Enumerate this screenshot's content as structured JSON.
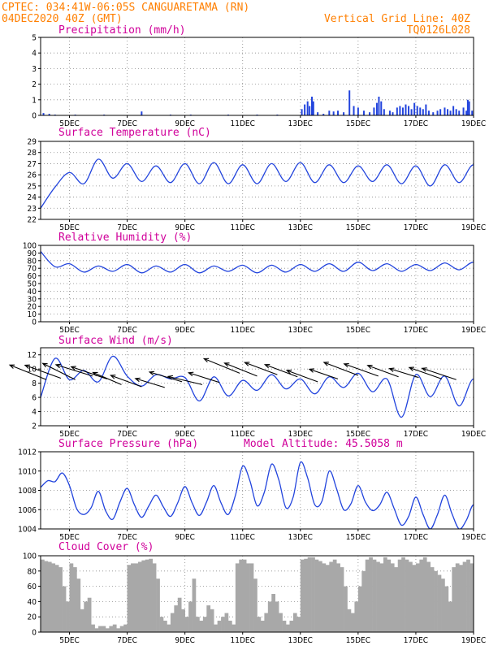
{
  "header": {
    "line1_left": "CPTEC:  034:41W-06:05S  CANGUARETAMA (RN)",
    "line2_left": "04DEC2020 40Z (GMT)",
    "line2_right": "Vertical Grid Line: 40Z",
    "line3_right": "TQ0126L028"
  },
  "colors": {
    "header": "#ff7f00",
    "title": "#d0009a",
    "series": "#2244dd",
    "cloud": "#a8a8a8"
  },
  "x_axis": {
    "unit": "days since 04DEC2020 00Z",
    "range": [
      0,
      15
    ],
    "ticks": [
      {
        "x": 1,
        "label": "5DEC"
      },
      {
        "x": 3,
        "label": "7DEC"
      },
      {
        "x": 5,
        "label": "9DEC"
      },
      {
        "x": 7,
        "label": "11DEC"
      },
      {
        "x": 9,
        "label": "13DEC"
      },
      {
        "x": 11,
        "label": "15DEC"
      },
      {
        "x": 13,
        "label": "17DEC"
      },
      {
        "x": 15,
        "label": "19DEC"
      }
    ],
    "vertical_grid": [
      1,
      3,
      5,
      7,
      9,
      11,
      13
    ]
  },
  "chart_data": [
    {
      "type": "bar",
      "title": "Precipitation (mm/h)",
      "ylim": [
        0,
        5
      ],
      "yticks": [
        0,
        1,
        2,
        3,
        4,
        5
      ],
      "bars": [
        [
          0.1,
          0.15
        ],
        [
          0.3,
          0.1
        ],
        [
          0.5,
          0.05
        ],
        [
          1.2,
          0.05
        ],
        [
          2.2,
          0.05
        ],
        [
          3.5,
          0.25
        ],
        [
          4.5,
          0.05
        ],
        [
          5.2,
          0.05
        ],
        [
          6.5,
          0.05
        ],
        [
          7.5,
          0.05
        ],
        [
          8.2,
          0.05
        ],
        [
          9.05,
          0.4
        ],
        [
          9.15,
          0.7
        ],
        [
          9.25,
          0.9
        ],
        [
          9.32,
          0.6
        ],
        [
          9.4,
          1.2
        ],
        [
          9.45,
          0.9
        ],
        [
          9.6,
          0.2
        ],
        [
          9.8,
          0.1
        ],
        [
          10.0,
          0.3
        ],
        [
          10.15,
          0.25
        ],
        [
          10.3,
          0.3
        ],
        [
          10.5,
          0.2
        ],
        [
          10.7,
          1.6
        ],
        [
          10.85,
          0.6
        ],
        [
          11.0,
          0.5
        ],
        [
          11.2,
          0.3
        ],
        [
          11.4,
          0.2
        ],
        [
          11.55,
          0.5
        ],
        [
          11.65,
          0.8
        ],
        [
          11.72,
          1.2
        ],
        [
          11.8,
          0.9
        ],
        [
          11.9,
          0.4
        ],
        [
          12.1,
          0.3
        ],
        [
          12.2,
          0.2
        ],
        [
          12.35,
          0.5
        ],
        [
          12.45,
          0.6
        ],
        [
          12.55,
          0.5
        ],
        [
          12.65,
          0.7
        ],
        [
          12.75,
          0.6
        ],
        [
          12.85,
          0.4
        ],
        [
          12.95,
          0.8
        ],
        [
          13.05,
          0.6
        ],
        [
          13.15,
          0.5
        ],
        [
          13.25,
          0.4
        ],
        [
          13.35,
          0.7
        ],
        [
          13.45,
          0.3
        ],
        [
          13.6,
          0.2
        ],
        [
          13.75,
          0.3
        ],
        [
          13.85,
          0.4
        ],
        [
          14.0,
          0.5
        ],
        [
          14.1,
          0.4
        ],
        [
          14.2,
          0.3
        ],
        [
          14.3,
          0.6
        ],
        [
          14.4,
          0.4
        ],
        [
          14.5,
          0.3
        ],
        [
          14.65,
          0.5
        ],
        [
          14.75,
          0.3
        ],
        [
          14.8,
          1.0
        ],
        [
          14.85,
          0.9
        ],
        [
          14.95,
          0.3
        ]
      ]
    },
    {
      "type": "line",
      "title": "Surface Temperature (nC)",
      "ylim": [
        22,
        29
      ],
      "yticks": [
        22,
        23,
        24,
        25,
        26,
        27,
        28,
        29
      ],
      "series_start": 0,
      "series_step": 0.5,
      "values": [
        23,
        24.9,
        26.2,
        25.2,
        27.4,
        25.7,
        27,
        25.4,
        26.8,
        25.3,
        27,
        25.2,
        27.1,
        25.2,
        26.9,
        25.2,
        27,
        25.4,
        27.1,
        25.3,
        26.9,
        25.3,
        26.8,
        25.4,
        26.9,
        25.2,
        26.8,
        25.0,
        26.9,
        25.3,
        26.9,
        25.2,
        27.1,
        25.2,
        26.7
      ]
    },
    {
      "type": "line",
      "title": "Relative Humidity (%)",
      "ylim": [
        0,
        100
      ],
      "yticks": [
        0,
        10,
        20,
        30,
        40,
        50,
        60,
        70,
        80,
        90,
        100
      ],
      "series_start": 0,
      "series_step": 0.5,
      "values": [
        92,
        72,
        76,
        65,
        73,
        66,
        75,
        64,
        73,
        65,
        75,
        64,
        73,
        66,
        74,
        64,
        74,
        65,
        75,
        66,
        76,
        66,
        78,
        67,
        76,
        66,
        75,
        67,
        77,
        68,
        78,
        67,
        78,
        69,
        75
      ]
    },
    {
      "type": "line",
      "title": "Surface Wind (m/s)",
      "ylim": [
        2,
        13
      ],
      "yticks": [
        2,
        4,
        6,
        8,
        10,
        12
      ],
      "series_start": 0,
      "series_step": 0.5,
      "values": [
        6,
        11.5,
        8.5,
        9.8,
        8.2,
        11.8,
        9,
        7.6,
        9.2,
        8.6,
        8.8,
        5.5,
        8.9,
        6.2,
        8.4,
        7.0,
        9.2,
        7.2,
        8.6,
        6.5,
        8.9,
        7.4,
        9.4,
        6.8,
        8.6,
        3.2,
        9.2,
        6.1,
        9.0,
        4.8,
        8.6,
        5.1,
        8.8,
        6.6,
        8.3
      ],
      "arrows": [
        {
          "x": 0.2,
          "y": 8.5,
          "dx": 45,
          "dy": 18
        },
        {
          "x": 0.7,
          "y": 8.7,
          "dx": 44,
          "dy": 16
        },
        {
          "x": 1.2,
          "y": 8.5,
          "dx": 40,
          "dy": 20
        },
        {
          "x": 1.8,
          "y": 9.0,
          "dx": 45,
          "dy": 14
        },
        {
          "x": 2.3,
          "y": 8.6,
          "dx": 44,
          "dy": 15
        },
        {
          "x": 2.8,
          "y": 7.8,
          "dx": 35,
          "dy": 15
        },
        {
          "x": 3.5,
          "y": 7.5,
          "dx": 38,
          "dy": 14
        },
        {
          "x": 4.3,
          "y": 7.4,
          "dx": 36,
          "dy": 11
        },
        {
          "x": 4.9,
          "y": 8.2,
          "dx": 40,
          "dy": 12
        },
        {
          "x": 5.6,
          "y": 7.8,
          "dx": 42,
          "dy": 10
        },
        {
          "x": 6.2,
          "y": 8.1,
          "dx": 38,
          "dy": 12
        },
        {
          "x": 6.9,
          "y": 9.4,
          "dx": 44,
          "dy": 18
        },
        {
          "x": 7.5,
          "y": 9.0,
          "dx": 40,
          "dy": 16
        },
        {
          "x": 8.2,
          "y": 9.2,
          "dx": 40,
          "dy": 15
        },
        {
          "x": 8.9,
          "y": 8.9,
          "dx": 40,
          "dy": 15
        },
        {
          "x": 9.6,
          "y": 8.2,
          "dx": 38,
          "dy": 14
        },
        {
          "x": 10.3,
          "y": 8.6,
          "dx": 35,
          "dy": 12
        },
        {
          "x": 11.0,
          "y": 9.1,
          "dx": 42,
          "dy": 16
        },
        {
          "x": 11.7,
          "y": 9.0,
          "dx": 42,
          "dy": 15
        },
        {
          "x": 12.4,
          "y": 8.9,
          "dx": 38,
          "dy": 14
        },
        {
          "x": 13.1,
          "y": 8.8,
          "dx": 36,
          "dy": 11
        },
        {
          "x": 13.9,
          "y": 8.6,
          "dx": 40,
          "dy": 14
        },
        {
          "x": 14.4,
          "y": 8.5,
          "dx": 42,
          "dy": 14
        }
      ]
    },
    {
      "type": "line",
      "title": "Surface Pressure (hPa)",
      "annotation": "Model Altitude: 45.5058 m",
      "ylim": [
        1004,
        1012
      ],
      "yticks": [
        1004,
        1006,
        1008,
        1010,
        1012
      ],
      "series_start": 0,
      "series_step": 0.25,
      "values": [
        1008.3,
        1009.0,
        1008.9,
        1009.8,
        1008.5,
        1006.1,
        1005.5,
        1006.2,
        1007.9,
        1005.9,
        1005.0,
        1006.8,
        1008.2,
        1006.5,
        1005.2,
        1006.4,
        1007.5,
        1006.3,
        1005.3,
        1006.7,
        1008.4,
        1006.7,
        1005.4,
        1006.8,
        1008.5,
        1006.7,
        1005.5,
        1007.5,
        1010.5,
        1009.0,
        1006.4,
        1007.8,
        1010.7,
        1009.1,
        1006.2,
        1007.3,
        1010.9,
        1009.3,
        1006.5,
        1006.9,
        1010.0,
        1008.2,
        1006.0,
        1006.6,
        1008.5,
        1006.8,
        1005.9,
        1006.5,
        1007.8,
        1006.1,
        1004.4,
        1005.3,
        1007.3,
        1005.5,
        1004.0,
        1005.5,
        1007.5,
        1005.6,
        1004.0,
        1004.9,
        1006.5,
        1005.1,
        1004.0,
        1005.0,
        1006.5,
        1005.3,
        1004.3,
        1005.0,
        1006.4,
        1005.0,
        1004.3,
        1005.4,
        1007.0,
        1005.5,
        1004.5,
        1005.0,
        1006.8,
        1005.6,
        1004.2,
        1005.1,
        1006.8,
        1005.5,
        1004.4,
        1005.0,
        1006.7,
        1005.0,
        1004.2,
        1005.1,
        1006.4,
        1005.3,
        1004.3,
        1005.1,
        1006.3,
        1005.0,
        1004.1,
        1005.0,
        1006.2,
        1005.2,
        1004.2,
        1005.0,
        1006.5,
        1005.3,
        1004.4,
        1005.1,
        1006.6,
        1005.3,
        1004.3,
        1005.4,
        1006.4,
        1005.6,
        1004.4,
        1005.2,
        1006.3,
        1005.0,
        1004.7,
        1005.1,
        1006.6,
        1005.3,
        1004.5,
        1005.1,
        1006.6
      ]
    },
    {
      "type": "bar",
      "title": "Cloud Cover (%)",
      "ylim": [
        0,
        100
      ],
      "yticks": [
        0,
        20,
        40,
        60,
        80,
        100
      ],
      "series_start": 0,
      "series_step": 0.125,
      "values": [
        95,
        93,
        92,
        90,
        88,
        85,
        60,
        40,
        90,
        85,
        70,
        30,
        40,
        45,
        10,
        5,
        8,
        8,
        5,
        8,
        10,
        5,
        8,
        10,
        88,
        90,
        90,
        92,
        94,
        95,
        96,
        90,
        70,
        20,
        15,
        10,
        25,
        35,
        45,
        30,
        20,
        40,
        70,
        20,
        15,
        20,
        35,
        30,
        10,
        15,
        20,
        25,
        15,
        10,
        90,
        95,
        95,
        90,
        90,
        70,
        20,
        15,
        25,
        40,
        50,
        40,
        25,
        15,
        10,
        15,
        25,
        20,
        95,
        96,
        98,
        98,
        95,
        93,
        90,
        88,
        92,
        95,
        90,
        85,
        60,
        30,
        25,
        40,
        60,
        80,
        95,
        98,
        95,
        92,
        90,
        98,
        95,
        90,
        85,
        95,
        98,
        95,
        92,
        88,
        90,
        95,
        98,
        92,
        85,
        80,
        75,
        70,
        60,
        40,
        85,
        90,
        88,
        92,
        95,
        90
      ]
    }
  ]
}
